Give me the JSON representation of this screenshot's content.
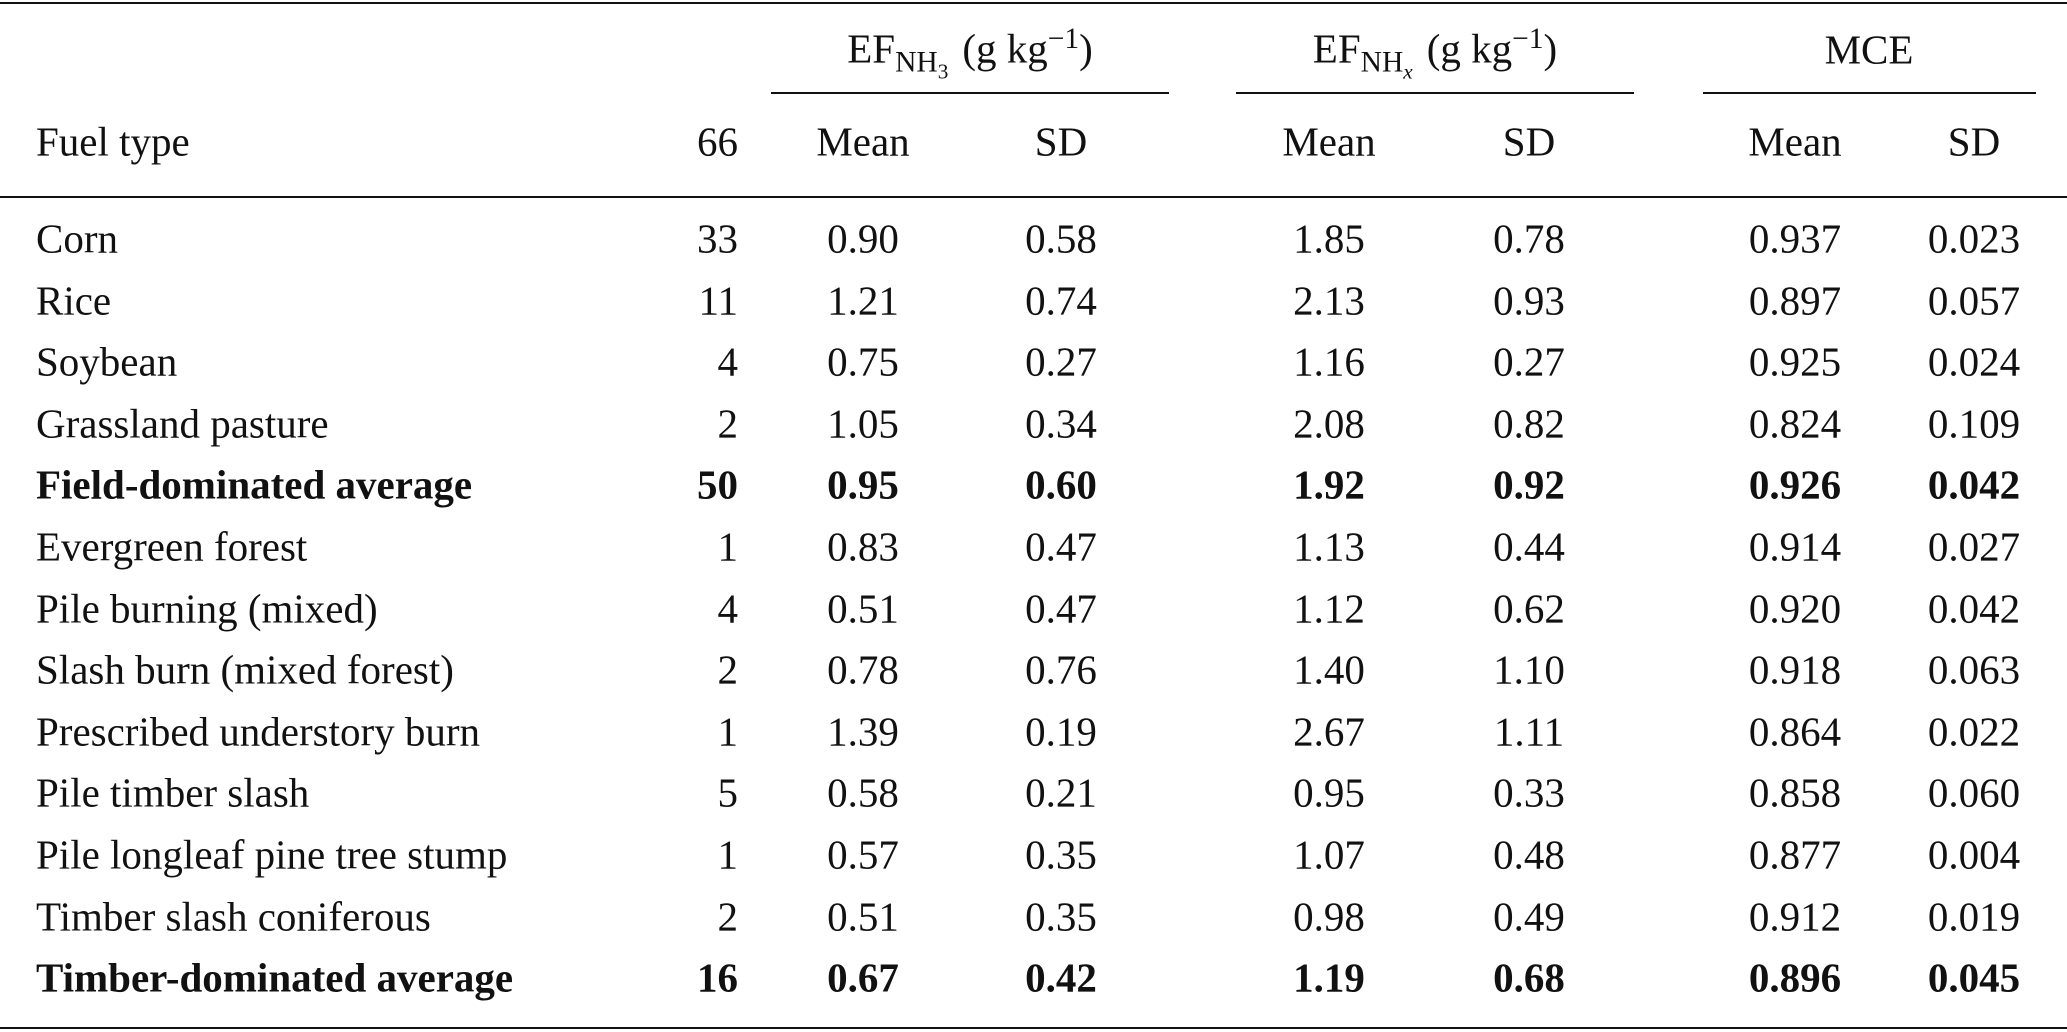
{
  "table": {
    "groups": [
      {
        "base": "EF",
        "sub": "NH",
        "sub_index": "3",
        "unit": "(g kg",
        "exponent": "−1",
        "unit_close": ")"
      },
      {
        "base": "EF",
        "sub": "NH",
        "sub_index": "x",
        "sub_index_italic": true,
        "unit": "(g kg",
        "exponent": "−1",
        "unit_close": ")"
      },
      {
        "base": "MCE"
      }
    ],
    "header": [
      "Fuel type",
      "66",
      "Mean",
      "SD",
      "Mean",
      "SD",
      "Mean",
      "SD"
    ],
    "rows": [
      {
        "cells": [
          "Corn",
          "33",
          "0.90",
          "0.58",
          "1.85",
          "0.78",
          "0.937",
          "0.023"
        ]
      },
      {
        "cells": [
          "Rice",
          "11",
          "1.21",
          "0.74",
          "2.13",
          "0.93",
          "0.897",
          "0.057"
        ]
      },
      {
        "cells": [
          "Soybean",
          "4",
          "0.75",
          "0.27",
          "1.16",
          "0.27",
          "0.925",
          "0.024"
        ]
      },
      {
        "cells": [
          "Grassland pasture",
          "2",
          "1.05",
          "0.34",
          "2.08",
          "0.82",
          "0.824",
          "0.109"
        ]
      },
      {
        "cells": [
          "Field-dominated average",
          "50",
          "0.95",
          "0.60",
          "1.92",
          "0.92",
          "0.926",
          "0.042"
        ],
        "bold": true
      },
      {
        "cells": [
          "Evergreen forest",
          "1",
          "0.83",
          "0.47",
          "1.13",
          "0.44",
          "0.914",
          "0.027"
        ]
      },
      {
        "cells": [
          "Pile burning (mixed)",
          "4",
          "0.51",
          "0.47",
          "1.12",
          "0.62",
          "0.920",
          "0.042"
        ]
      },
      {
        "cells": [
          "Slash burn (mixed forest)",
          "2",
          "0.78",
          "0.76",
          "1.40",
          "1.10",
          "0.918",
          "0.063"
        ]
      },
      {
        "cells": [
          "Prescribed understory burn",
          "1",
          "1.39",
          "0.19",
          "2.67",
          "1.11",
          "0.864",
          "0.022"
        ]
      },
      {
        "cells": [
          "Pile timber slash",
          "5",
          "0.58",
          "0.21",
          "0.95",
          "0.33",
          "0.858",
          "0.060"
        ]
      },
      {
        "cells": [
          "Pile longleaf pine tree stump",
          "1",
          "0.57",
          "0.35",
          "1.07",
          "0.48",
          "0.877",
          "0.004"
        ]
      },
      {
        "cells": [
          "Timber slash coniferous",
          "2",
          "0.51",
          "0.35",
          "0.98",
          "0.49",
          "0.912",
          "0.019"
        ]
      },
      {
        "cells": [
          "Timber-dominated average",
          "16",
          "0.67",
          "0.42",
          "1.19",
          "0.68",
          "0.896",
          "0.045"
        ],
        "bold": true
      }
    ]
  }
}
